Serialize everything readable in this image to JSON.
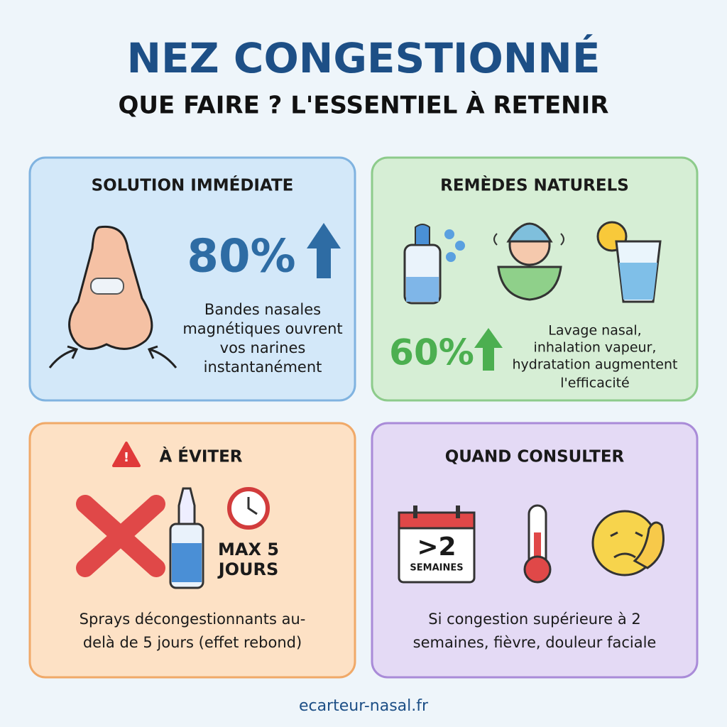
{
  "header": {
    "title": "NEZ CONGESTIONNÉ",
    "subtitle": "QUE FAIRE ? L'ESSENTIEL À RETENIR"
  },
  "cards": [
    {
      "title": "SOLUTION IMMÉDIATE",
      "stat": "80%",
      "lines": [
        "Bandes nasales",
        "magnétiques ouvrent",
        "vos narines",
        "instantanément"
      ]
    },
    {
      "title": "REMÈDES NATURELS",
      "stat": "60%",
      "lines": [
        "Lavage nasal,",
        "inhalation vapeur,",
        "hydratation augmentent",
        "l'efficacité"
      ]
    },
    {
      "title": "À ÉVITER",
      "badge": [
        "MAX 5",
        "JOURS"
      ],
      "lines": [
        "Sprays décongestionnants au-",
        "delà de 5 jours (effet rebond)"
      ]
    },
    {
      "title": "QUAND CONSULTER",
      "calendar": [
        ">2",
        "SEMAINES"
      ],
      "lines": [
        "Si congestion supérieure à 2",
        "semaines, fièvre, douleur faciale"
      ]
    }
  ],
  "footer": "ecarteur-nasal.fr"
}
